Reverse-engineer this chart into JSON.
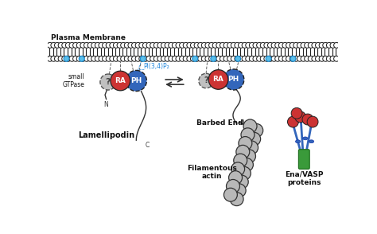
{
  "bg_color": "#ffffff",
  "lipid_head_color": "#ffffff",
  "lipid_head_edge": "#1a1a1a",
  "pi_lipid_color": "#5bbfea",
  "gray_domain_color": "#c0c0c0",
  "gray_domain_edge": "#555555",
  "red_domain_color": "#cc3333",
  "red_domain_edge": "#222222",
  "blue_domain_color": "#3366bb",
  "blue_domain_edge": "#222222",
  "actin_color": "#b8b8b8",
  "actin_edge": "#333333",
  "ena_red_color": "#cc3333",
  "ena_blue_color": "#3366bb",
  "ena_green_color": "#3a9a3a",
  "plasma_membrane_label": "Plasma Membrane",
  "small_gtpase_label": "small\nGTPase",
  "lamellipodin_label": "Lamellipodin",
  "pi_label": "PI(3,4)P₂",
  "barbed_end_label": "Barbed End",
  "filamentous_actin_label": "Filamentous\nactin",
  "ena_vasp_label": "Ena/VASP\nproteins",
  "n_label": "N",
  "c_label": "C",
  "ra_label": "RA",
  "ph_label": "PH",
  "question_label": "?"
}
